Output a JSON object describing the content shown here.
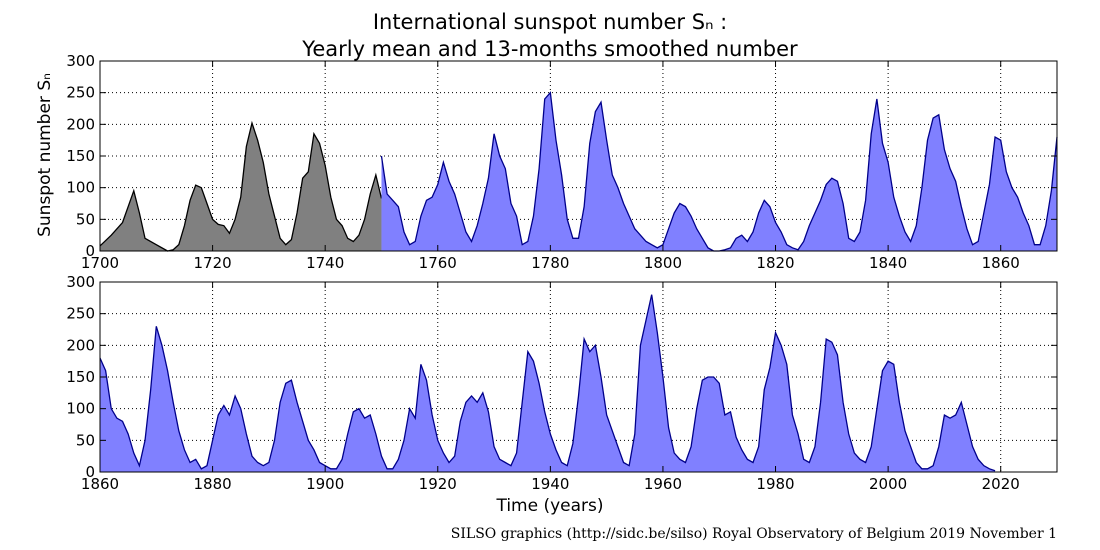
{
  "title_line1": "International sunspot number Sₙ :",
  "title_line2": "Yearly mean and 13-months smoothed number",
  "ylabel": "Sunspot number Sₙ",
  "xlabel": "Time (years)",
  "footer": "SILSO graphics (http://sidc.be/silso)  Royal Observatory of Belgium  2019 November 1",
  "colors": {
    "yearly_fill": "#808080",
    "monthly_fill": "#8080ff",
    "monthly_line": "#00008b",
    "yearly_line": "#000000"
  },
  "chart_data": [
    {
      "type": "area",
      "xlim": [
        1700,
        1870
      ],
      "ylim": [
        0,
        300
      ],
      "x_ticks": [
        1700,
        1720,
        1740,
        1760,
        1780,
        1800,
        1820,
        1840,
        1860
      ],
      "y_ticks": [
        0,
        50,
        100,
        150,
        200,
        250,
        300
      ],
      "grid": true,
      "series": [
        {
          "style": "yearly-mean-gray",
          "x": [
            1700,
            1702,
            1704,
            1705,
            1706,
            1707,
            1708,
            1710,
            1712,
            1713,
            1714,
            1715,
            1716,
            1717,
            1718,
            1719,
            1720,
            1721,
            1722,
            1723,
            1724,
            1725,
            1726,
            1727,
            1728,
            1729,
            1730,
            1731,
            1732,
            1733,
            1734,
            1735,
            1736,
            1737,
            1738,
            1739,
            1740,
            1741,
            1742,
            1743,
            1744,
            1745,
            1746,
            1747,
            1748,
            1749,
            1750
          ],
          "y": [
            8,
            25,
            45,
            70,
            95,
            60,
            20,
            10,
            0,
            2,
            10,
            40,
            80,
            104,
            100,
            75,
            50,
            42,
            40,
            28,
            50,
            85,
            165,
            202,
            175,
            140,
            90,
            55,
            20,
            10,
            18,
            60,
            115,
            125,
            185,
            170,
            135,
            85,
            50,
            40,
            20,
            15,
            25,
            50,
            90,
            120,
            83
          ]
        },
        {
          "style": "monthly-smoothed-blue",
          "x": [
            1750,
            1751,
            1752,
            1753,
            1754,
            1755,
            1756,
            1757,
            1758,
            1759,
            1760,
            1761,
            1762,
            1763,
            1764,
            1765,
            1766,
            1767,
            1768,
            1769,
            1770,
            1771,
            1772,
            1773,
            1774,
            1775,
            1776,
            1777,
            1778,
            1779,
            1780,
            1781,
            1782,
            1783,
            1784,
            1785,
            1786,
            1787,
            1788,
            1789,
            1790,
            1791,
            1792,
            1793,
            1794,
            1795,
            1796,
            1797,
            1798,
            1799,
            1800,
            1801,
            1802,
            1803,
            1804,
            1805,
            1806,
            1807,
            1808,
            1809,
            1810,
            1811,
            1812,
            1813,
            1814,
            1815,
            1816,
            1817,
            1818,
            1819,
            1820,
            1821,
            1822,
            1823,
            1824,
            1825,
            1826,
            1827,
            1828,
            1829,
            1830,
            1831,
            1832,
            1833,
            1834,
            1835,
            1836,
            1837,
            1838,
            1839,
            1840,
            1841,
            1842,
            1843,
            1844,
            1845,
            1846,
            1847,
            1848,
            1849,
            1850,
            1851,
            1852,
            1853,
            1854,
            1855,
            1856,
            1857,
            1858,
            1859,
            1860,
            1861,
            1862,
            1863,
            1864,
            1865,
            1866,
            1867,
            1868,
            1869,
            1870
          ],
          "y": [
            150,
            90,
            80,
            70,
            30,
            10,
            15,
            55,
            80,
            85,
            105,
            140,
            110,
            90,
            60,
            30,
            15,
            40,
            75,
            115,
            185,
            150,
            130,
            75,
            55,
            10,
            15,
            55,
            130,
            240,
            250,
            175,
            120,
            50,
            20,
            20,
            70,
            170,
            220,
            235,
            175,
            120,
            100,
            75,
            55,
            35,
            25,
            15,
            10,
            5,
            10,
            35,
            60,
            75,
            70,
            55,
            35,
            20,
            5,
            0,
            0,
            2,
            5,
            20,
            25,
            15,
            30,
            60,
            80,
            70,
            45,
            30,
            10,
            5,
            2,
            15,
            40,
            60,
            80,
            105,
            115,
            110,
            75,
            20,
            15,
            30,
            80,
            185,
            240,
            170,
            140,
            85,
            55,
            30,
            15,
            40,
            100,
            175,
            210,
            215,
            160,
            130,
            110,
            70,
            35,
            10,
            15,
            60,
            105,
            180,
            175,
            125,
            100,
            85,
            60,
            40,
            10,
            10,
            40,
            95,
            180
          ]
        }
      ]
    },
    {
      "type": "area",
      "xlim": [
        1860,
        2030
      ],
      "ylim": [
        0,
        300
      ],
      "x_ticks": [
        1860,
        1880,
        1900,
        1920,
        1940,
        1960,
        1980,
        2000,
        2020
      ],
      "y_ticks": [
        0,
        50,
        100,
        150,
        200,
        250,
        300
      ],
      "grid": true,
      "series": [
        {
          "style": "monthly-smoothed-blue",
          "x": [
            1860,
            1861,
            1862,
            1863,
            1864,
            1865,
            1866,
            1867,
            1868,
            1869,
            1870,
            1871,
            1872,
            1873,
            1874,
            1875,
            1876,
            1877,
            1878,
            1879,
            1880,
            1881,
            1882,
            1883,
            1884,
            1885,
            1886,
            1887,
            1888,
            1889,
            1890,
            1891,
            1892,
            1893,
            1894,
            1895,
            1896,
            1897,
            1898,
            1899,
            1900,
            1901,
            1902,
            1903,
            1904,
            1905,
            1906,
            1907,
            1908,
            1909,
            1910,
            1911,
            1912,
            1913,
            1914,
            1915,
            1916,
            1917,
            1918,
            1919,
            1920,
            1921,
            1922,
            1923,
            1924,
            1925,
            1926,
            1927,
            1928,
            1929,
            1930,
            1931,
            1932,
            1933,
            1934,
            1935,
            1936,
            1937,
            1938,
            1939,
            1940,
            1941,
            1942,
            1943,
            1944,
            1945,
            1946,
            1947,
            1948,
            1949,
            1950,
            1951,
            1952,
            1953,
            1954,
            1955,
            1956,
            1957,
            1958,
            1959,
            1960,
            1961,
            1962,
            1963,
            1964,
            1965,
            1966,
            1967,
            1968,
            1969,
            1970,
            1971,
            1972,
            1973,
            1974,
            1975,
            1976,
            1977,
            1978,
            1979,
            1980,
            1981,
            1982,
            1983,
            1984,
            1985,
            1986,
            1987,
            1988,
            1989,
            1990,
            1991,
            1992,
            1993,
            1994,
            1995,
            1996,
            1997,
            1998,
            1999,
            2000,
            2001,
            2002,
            2003,
            2004,
            2005,
            2006,
            2007,
            2008,
            2009,
            2010,
            2011,
            2012,
            2013,
            2014,
            2015,
            2016,
            2017,
            2018,
            2019
          ],
          "y": [
            180,
            160,
            100,
            85,
            80,
            60,
            30,
            10,
            50,
            130,
            230,
            200,
            160,
            110,
            65,
            35,
            15,
            20,
            5,
            10,
            50,
            90,
            105,
            90,
            120,
            100,
            60,
            25,
            15,
            10,
            15,
            50,
            110,
            140,
            145,
            110,
            80,
            50,
            35,
            15,
            10,
            5,
            5,
            20,
            60,
            95,
            100,
            85,
            90,
            60,
            25,
            5,
            5,
            20,
            50,
            100,
            85,
            170,
            145,
            90,
            50,
            30,
            15,
            25,
            80,
            110,
            120,
            110,
            125,
            95,
            40,
            20,
            15,
            10,
            30,
            110,
            190,
            175,
            140,
            95,
            60,
            35,
            15,
            10,
            45,
            120,
            210,
            190,
            200,
            150,
            90,
            65,
            40,
            15,
            10,
            60,
            200,
            240,
            280,
            220,
            150,
            70,
            30,
            20,
            15,
            40,
            100,
            145,
            150,
            150,
            140,
            90,
            95,
            55,
            35,
            20,
            15,
            40,
            130,
            165,
            220,
            200,
            170,
            90,
            60,
            20,
            15,
            40,
            110,
            210,
            205,
            185,
            110,
            60,
            30,
            20,
            15,
            40,
            100,
            160,
            175,
            170,
            110,
            65,
            40,
            15,
            5,
            5,
            10,
            40,
            90,
            85,
            90,
            110,
            75,
            40,
            20,
            10,
            5,
            2
          ]
        }
      ]
    }
  ]
}
